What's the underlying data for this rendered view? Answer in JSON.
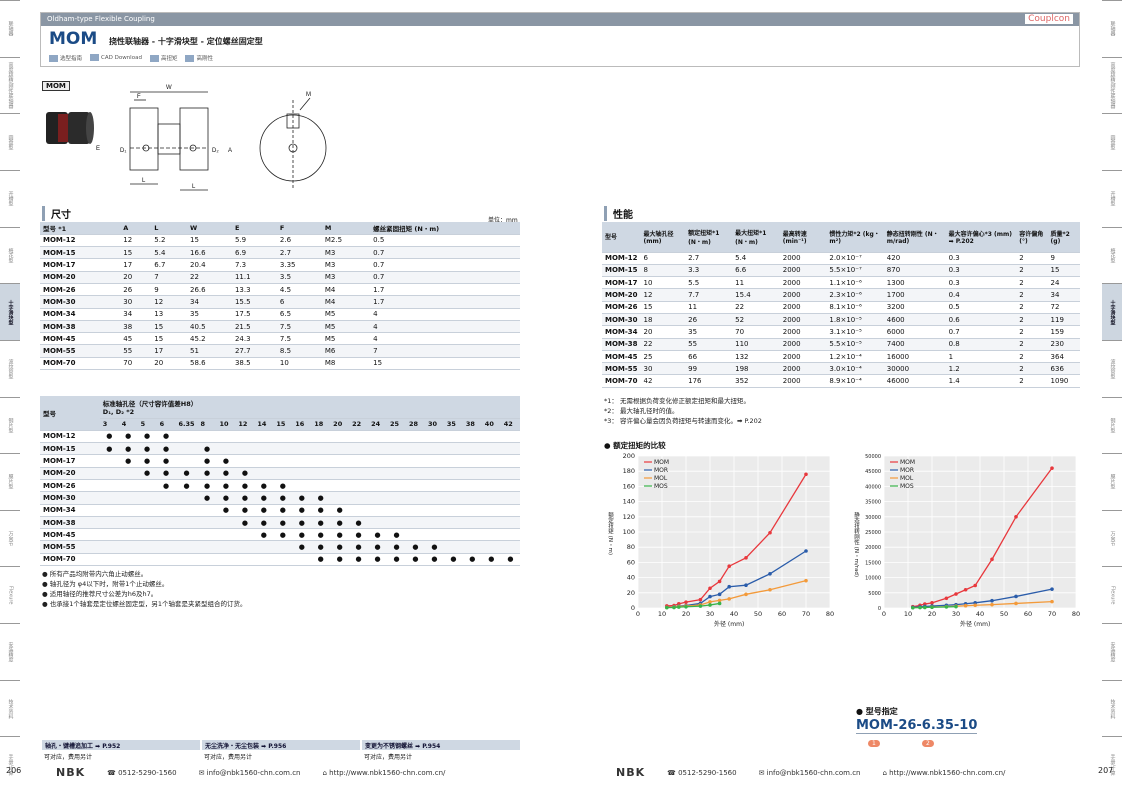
{
  "header": {
    "band": "Oldham-type Flexible Coupling",
    "brand": "Couplcon",
    "model": "MOM",
    "subtitle": "挠性联轴器 - 十字滑块型 - 定位螺丝固定型",
    "icons": [
      "选型指南",
      "CAD Download",
      "高扭矩",
      "高刚性"
    ]
  },
  "side_left": [
    "联轴器",
    "高度超精/刚性联轴器",
    "圆盘型",
    "开槽型",
    "梅花型",
    "十字滑块型",
    "波纹管型",
    "钢片型",
    "膜片型",
    "万向节",
    "Flexure",
    "安装精度",
    "技术资料",
    "手册/计算"
  ],
  "side_right": [
    "联轴器",
    "高度超精/刚性联轴器",
    "圆盘型",
    "开槽型",
    "梅花型",
    "十字滑块型",
    "波纹管型",
    "钢片型",
    "膜片型",
    "万向节",
    "Flexure",
    "安装精度",
    "技术资料",
    "手册/计算"
  ],
  "side_active": "十字滑块型 定位螺丝",
  "drawing": {
    "tag": "MOM",
    "labels": [
      "W",
      "F",
      "E",
      "D₁",
      "D₂",
      "A",
      "L",
      "L",
      "M"
    ]
  },
  "dims": {
    "title": "尺寸",
    "unit": "单位：mm",
    "headers": [
      "型号 *1",
      "A",
      "L",
      "W",
      "E",
      "F",
      "M",
      "螺丝紧固扭矩 (N・m)"
    ],
    "rows": [
      [
        "MOM-12",
        "12",
        "5.2",
        "15",
        "5.9",
        "2.6",
        "M2.5",
        "0.5"
      ],
      [
        "MOM-15",
        "15",
        "5.4",
        "16.6",
        "6.9",
        "2.7",
        "M3",
        "0.7"
      ],
      [
        "MOM-17",
        "17",
        "6.7",
        "20.4",
        "7.3",
        "3.35",
        "M3",
        "0.7"
      ],
      [
        "MOM-20",
        "20",
        "7",
        "22",
        "11.1",
        "3.5",
        "M3",
        "0.7"
      ],
      [
        "MOM-26",
        "26",
        "9",
        "26.6",
        "13.3",
        "4.5",
        "M4",
        "1.7"
      ],
      [
        "MOM-30",
        "30",
        "12",
        "34",
        "15.5",
        "6",
        "M4",
        "1.7"
      ],
      [
        "MOM-34",
        "34",
        "13",
        "35",
        "17.5",
        "6.5",
        "M5",
        "4"
      ],
      [
        "MOM-38",
        "38",
        "15",
        "40.5",
        "21.5",
        "7.5",
        "M5",
        "4"
      ],
      [
        "MOM-45",
        "45",
        "15",
        "45.2",
        "24.3",
        "7.5",
        "M5",
        "4"
      ],
      [
        "MOM-55",
        "55",
        "17",
        "51",
        "27.7",
        "8.5",
        "M6",
        "7"
      ],
      [
        "MOM-70",
        "70",
        "20",
        "58.6",
        "38.5",
        "10",
        "M8",
        "15"
      ]
    ]
  },
  "bore": {
    "h1": "型号",
    "h2": "标准轴孔径（尺寸容许值差H8）",
    "h3": "D₁, D₂ *2",
    "sizes": [
      "3",
      "4",
      "5",
      "6",
      "6.35",
      "8",
      "10",
      "12",
      "14",
      "15",
      "16",
      "18",
      "20",
      "22",
      "24",
      "25",
      "28",
      "30",
      "35",
      "38",
      "40",
      "42"
    ],
    "rows": [
      {
        "m": "MOM-12",
        "d": [
          1,
          1,
          1,
          1,
          0,
          0,
          0,
          0,
          0,
          0,
          0,
          0,
          0,
          0,
          0,
          0,
          0,
          0,
          0,
          0,
          0,
          0
        ]
      },
      {
        "m": "MOM-15",
        "d": [
          1,
          1,
          1,
          1,
          0,
          1,
          0,
          0,
          0,
          0,
          0,
          0,
          0,
          0,
          0,
          0,
          0,
          0,
          0,
          0,
          0,
          0
        ]
      },
      {
        "m": "MOM-17",
        "d": [
          0,
          1,
          1,
          1,
          0,
          1,
          1,
          0,
          0,
          0,
          0,
          0,
          0,
          0,
          0,
          0,
          0,
          0,
          0,
          0,
          0,
          0
        ]
      },
      {
        "m": "MOM-20",
        "d": [
          0,
          0,
          1,
          1,
          1,
          1,
          1,
          1,
          0,
          0,
          0,
          0,
          0,
          0,
          0,
          0,
          0,
          0,
          0,
          0,
          0,
          0
        ]
      },
      {
        "m": "MOM-26",
        "d": [
          0,
          0,
          0,
          1,
          1,
          1,
          1,
          1,
          1,
          1,
          0,
          0,
          0,
          0,
          0,
          0,
          0,
          0,
          0,
          0,
          0,
          0
        ]
      },
      {
        "m": "MOM-30",
        "d": [
          0,
          0,
          0,
          0,
          0,
          1,
          1,
          1,
          1,
          1,
          1,
          1,
          0,
          0,
          0,
          0,
          0,
          0,
          0,
          0,
          0,
          0
        ]
      },
      {
        "m": "MOM-34",
        "d": [
          0,
          0,
          0,
          0,
          0,
          0,
          1,
          1,
          1,
          1,
          1,
          1,
          1,
          0,
          0,
          0,
          0,
          0,
          0,
          0,
          0,
          0
        ]
      },
      {
        "m": "MOM-38",
        "d": [
          0,
          0,
          0,
          0,
          0,
          0,
          0,
          1,
          1,
          1,
          1,
          1,
          1,
          1,
          0,
          0,
          0,
          0,
          0,
          0,
          0,
          0
        ]
      },
      {
        "m": "MOM-45",
        "d": [
          0,
          0,
          0,
          0,
          0,
          0,
          0,
          0,
          1,
          1,
          1,
          1,
          1,
          1,
          1,
          1,
          0,
          0,
          0,
          0,
          0,
          0
        ]
      },
      {
        "m": "MOM-55",
        "d": [
          0,
          0,
          0,
          0,
          0,
          0,
          0,
          0,
          0,
          0,
          1,
          1,
          1,
          1,
          1,
          1,
          1,
          1,
          0,
          0,
          0,
          0
        ]
      },
      {
        "m": "MOM-70",
        "d": [
          0,
          0,
          0,
          0,
          0,
          0,
          0,
          0,
          0,
          0,
          0,
          1,
          1,
          1,
          1,
          1,
          1,
          1,
          1,
          1,
          1,
          1
        ]
      }
    ]
  },
  "left_notes": [
    "● 所有产品均附带内六角止动螺丝。",
    "● 轴孔径为 φ4以下时，附带1个止动螺丝。",
    "● 适用轴径的推荐尺寸公差为h6及h7。",
    "● 也承接1个轴套是定位螺丝固定型，另1个轴套是夹紧型组合的订货。"
  ],
  "perf": {
    "title": "性能",
    "headers": [
      "型号",
      "最大轴孔径 (mm)",
      "额定扭矩*1 (N・m)",
      "最大扭矩*1 (N・m)",
      "最高转速 (min⁻¹)",
      "惯性力矩*2 (kg・m²)",
      "静态扭转刚性 (N・m/rad)",
      "最大容许偏心*3 (mm) ➡ P.202",
      "容许偏角 (°)",
      "质量*2 (g)"
    ],
    "rows": [
      [
        "MOM-12",
        "6",
        "2.7",
        "5.4",
        "2000",
        "2.0×10⁻⁷",
        "420",
        "0.3",
        "2",
        "9"
      ],
      [
        "MOM-15",
        "8",
        "3.3",
        "6.6",
        "2000",
        "5.5×10⁻⁷",
        "870",
        "0.3",
        "2",
        "15"
      ],
      [
        "MOM-17",
        "10",
        "5.5",
        "11",
        "2000",
        "1.1×10⁻⁶",
        "1300",
        "0.3",
        "2",
        "24"
      ],
      [
        "MOM-20",
        "12",
        "7.7",
        "15.4",
        "2000",
        "2.3×10⁻⁶",
        "1700",
        "0.4",
        "2",
        "34"
      ],
      [
        "MOM-26",
        "15",
        "11",
        "22",
        "2000",
        "8.1×10⁻⁶",
        "3200",
        "0.5",
        "2",
        "72"
      ],
      [
        "MOM-30",
        "18",
        "26",
        "52",
        "2000",
        "1.8×10⁻⁵",
        "4600",
        "0.6",
        "2",
        "119"
      ],
      [
        "MOM-34",
        "20",
        "35",
        "70",
        "2000",
        "3.1×10⁻⁵",
        "6000",
        "0.7",
        "2",
        "159"
      ],
      [
        "MOM-38",
        "22",
        "55",
        "110",
        "2000",
        "5.5×10⁻⁵",
        "7400",
        "0.8",
        "2",
        "230"
      ],
      [
        "MOM-45",
        "25",
        "66",
        "132",
        "2000",
        "1.2×10⁻⁴",
        "16000",
        "1",
        "2",
        "364"
      ],
      [
        "MOM-55",
        "30",
        "99",
        "198",
        "2000",
        "3.0×10⁻⁴",
        "30000",
        "1.2",
        "2",
        "636"
      ],
      [
        "MOM-70",
        "42",
        "176",
        "352",
        "2000",
        "8.9×10⁻⁴",
        "46000",
        "1.4",
        "2",
        "1090"
      ]
    ]
  },
  "perf_notes": [
    "*1： 无需根据负荷变化修正额定扭矩和最大扭矩。",
    "*2： 最大轴孔径时的值。",
    "*3： 容许偏心量会因负荷扭矩与转速而变化。➡ P.202"
  ],
  "chart_title": "● 额定扭矩的比较",
  "chart_data": [
    {
      "type": "line",
      "ylabel": "额定扭矩 (N・m)",
      "xlabel": "外径 (mm)",
      "xlim": [
        0,
        80
      ],
      "ylim": [
        0,
        200
      ],
      "xticks": [
        0,
        10,
        20,
        30,
        40,
        50,
        60,
        70,
        80
      ],
      "yticks": [
        0,
        20,
        40,
        60,
        80,
        100,
        120,
        140,
        160,
        180,
        200
      ],
      "series": [
        {
          "name": "MOM",
          "color": "#e8383d",
          "x": [
            12,
            15,
            17,
            20,
            26,
            30,
            34,
            38,
            45,
            55,
            70
          ],
          "y": [
            2.7,
            3.3,
            5.5,
            7.7,
            11,
            26,
            35,
            55,
            66,
            99,
            176
          ]
        },
        {
          "name": "MOR",
          "color": "#2a5caa",
          "x": [
            12,
            15,
            17,
            20,
            26,
            30,
            34,
            38,
            45,
            55,
            70
          ],
          "y": [
            1,
            1.5,
            2.5,
            3.2,
            6,
            15,
            18,
            28,
            30,
            45,
            75
          ]
        },
        {
          "name": "MOL",
          "color": "#f39a3a",
          "x": [
            12,
            15,
            17,
            20,
            26,
            30,
            34,
            38,
            45,
            55,
            70
          ],
          "y": [
            0.8,
            1.2,
            2,
            2.5,
            4,
            8,
            10,
            12,
            18,
            24,
            36
          ]
        },
        {
          "name": "MOS",
          "color": "#39b34a",
          "x": [
            12,
            15,
            17,
            20,
            26,
            30,
            34
          ],
          "y": [
            0.5,
            0.7,
            1.2,
            1.6,
            2.5,
            4,
            6
          ]
        }
      ]
    },
    {
      "type": "line",
      "ylabel": "静态扭转刚性 (N・m/rad)",
      "xlabel": "外径 (mm)",
      "xlim": [
        0,
        80
      ],
      "ylim": [
        0,
        50000
      ],
      "xticks": [
        0,
        10,
        20,
        30,
        40,
        50,
        60,
        70,
        80
      ],
      "yticks": [
        0,
        5000,
        10000,
        15000,
        20000,
        25000,
        30000,
        35000,
        40000,
        45000,
        50000
      ],
      "series": [
        {
          "name": "MOM",
          "color": "#e8383d",
          "x": [
            12,
            15,
            17,
            20,
            26,
            30,
            34,
            38,
            45,
            55,
            70
          ],
          "y": [
            420,
            870,
            1300,
            1700,
            3200,
            4600,
            6000,
            7400,
            16000,
            30000,
            46000
          ]
        },
        {
          "name": "MOR",
          "color": "#2a5caa",
          "x": [
            12,
            15,
            17,
            20,
            26,
            30,
            34,
            38,
            45,
            55,
            70
          ],
          "y": [
            200,
            350,
            500,
            650,
            900,
            1100,
            1400,
            1700,
            2400,
            3800,
            6200
          ]
        },
        {
          "name": "MOL",
          "color": "#f39a3a",
          "x": [
            20,
            26,
            30,
            34,
            38,
            45,
            55,
            70
          ],
          "y": [
            300,
            450,
            600,
            750,
            900,
            1100,
            1500,
            2100
          ]
        },
        {
          "name": "MOS",
          "color": "#39b34a",
          "x": [
            12,
            15,
            17,
            20,
            26,
            30
          ],
          "y": [
            80,
            120,
            180,
            250,
            350,
            450
          ]
        }
      ]
    }
  ],
  "order": {
    "title": "● 型号指定",
    "code": "MOM-26-6.35-10",
    "n1": "1",
    "n2": "2"
  },
  "bottom_opts": [
    {
      "t": "轴孔・键槽追加工 ➡ P.952",
      "s": "可对应，费用另计"
    },
    {
      "t": "无尘洗净・无尘包装 ➡ P.956",
      "s": "可对应，费用另计"
    },
    {
      "t": "变更为不锈钢螺丝 ➡ P.954",
      "s": "可对应，费用另计"
    }
  ],
  "footer": {
    "logo": "NBK",
    "tel": "0512-5290-1560",
    "mail": "info@nbk1560-chn.com.cn",
    "web": "http://www.nbk1560-chn.com.cn/",
    "page_left": "206",
    "page_right": "207"
  }
}
